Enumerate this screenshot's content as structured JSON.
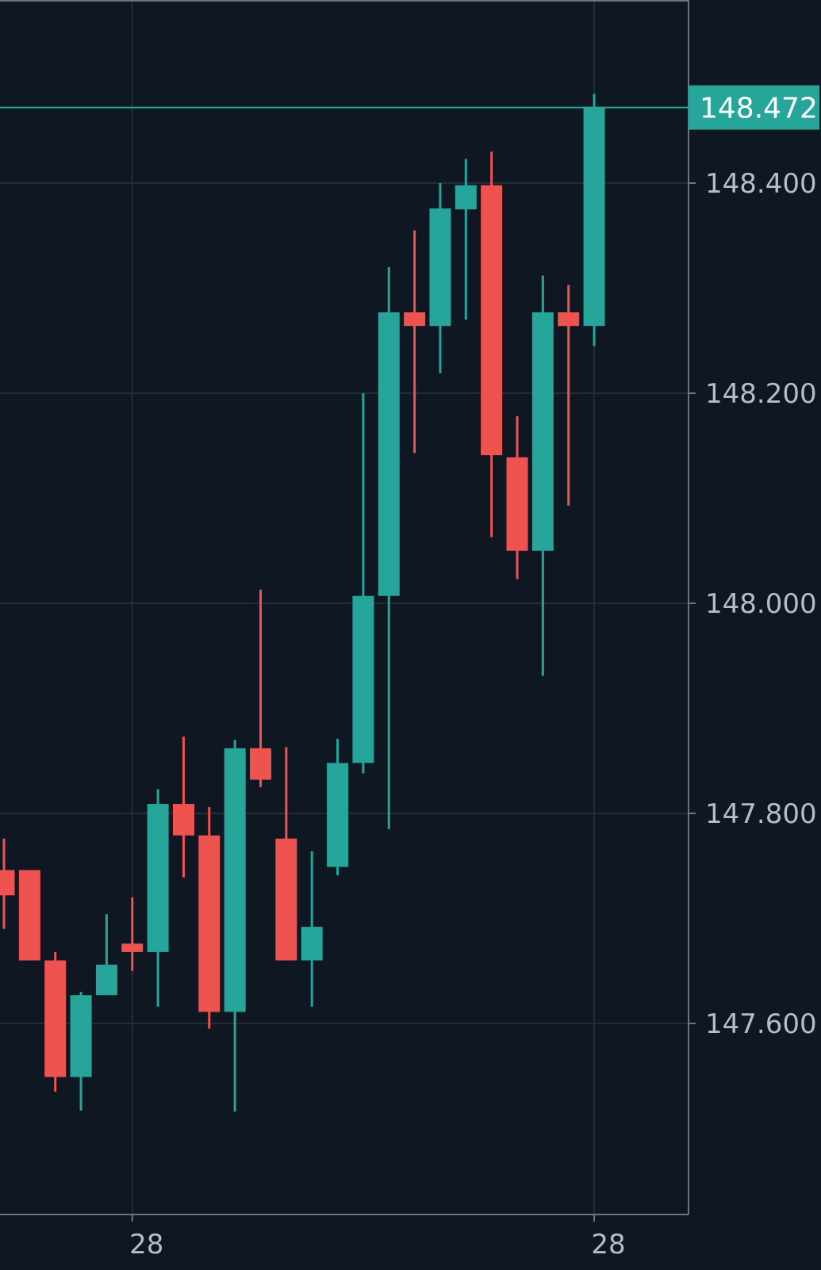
{
  "colors": {
    "background": "#0f1722",
    "grid": "#252c38",
    "axis": "#6e737e",
    "label": "#b8bcc4",
    "up": "#26a69a",
    "down": "#ef5350",
    "price_badge_text": "#ffffff"
  },
  "chart_data": {
    "type": "candlestick",
    "y_ticks": [
      {
        "value": 148.4,
        "label": "148.400"
      },
      {
        "value": 148.2,
        "label": "148.200"
      },
      {
        "value": 148.0,
        "label": "148.000"
      },
      {
        "value": 147.8,
        "label": "147.800"
      },
      {
        "value": 147.6,
        "label": "147.600"
      }
    ],
    "x_ticks": [
      {
        "index": 5,
        "label": "28"
      },
      {
        "index": 23,
        "label": "28"
      }
    ],
    "ylim": [
      147.423,
      148.58
    ],
    "current_price": {
      "value": 148.472,
      "label": "148.472"
    },
    "candles": [
      {
        "o": 147.746,
        "h": 147.776,
        "l": 147.69,
        "c": 147.722
      },
      {
        "o": 147.746,
        "h": 147.74,
        "l": 147.664,
        "c": 147.66
      },
      {
        "o": 147.66,
        "h": 147.668,
        "l": 147.535,
        "c": 147.549
      },
      {
        "o": 147.549,
        "h": 147.63,
        "l": 147.517,
        "c": 147.627
      },
      {
        "o": 147.627,
        "h": 147.704,
        "l": 147.627,
        "c": 147.656
      },
      {
        "o": 147.676,
        "h": 147.72,
        "l": 147.65,
        "c": 147.668
      },
      {
        "o": 147.668,
        "h": 147.823,
        "l": 147.616,
        "c": 147.809
      },
      {
        "o": 147.809,
        "h": 147.873,
        "l": 147.739,
        "c": 147.779
      },
      {
        "o": 147.779,
        "h": 147.806,
        "l": 147.595,
        "c": 147.611
      },
      {
        "o": 147.611,
        "h": 147.87,
        "l": 147.516,
        "c": 147.862
      },
      {
        "o": 147.862,
        "h": 148.013,
        "l": 147.825,
        "c": 147.832
      },
      {
        "o": 147.776,
        "h": 147.863,
        "l": 147.663,
        "c": 147.66
      },
      {
        "o": 147.66,
        "h": 147.764,
        "l": 147.616,
        "c": 147.692
      },
      {
        "o": 147.749,
        "h": 147.871,
        "l": 147.741,
        "c": 147.848
      },
      {
        "o": 147.848,
        "h": 148.2,
        "l": 147.838,
        "c": 148.007
      },
      {
        "o": 148.007,
        "h": 148.32,
        "l": 147.785,
        "c": 148.277
      },
      {
        "o": 148.277,
        "h": 148.355,
        "l": 148.143,
        "c": 148.264
      },
      {
        "o": 148.264,
        "h": 148.4,
        "l": 148.219,
        "c": 148.376
      },
      {
        "o": 148.375,
        "h": 148.423,
        "l": 148.27,
        "c": 148.398
      },
      {
        "o": 148.398,
        "h": 148.43,
        "l": 148.063,
        "c": 148.141
      },
      {
        "o": 148.139,
        "h": 148.178,
        "l": 148.023,
        "c": 148.05
      },
      {
        "o": 148.05,
        "h": 148.312,
        "l": 147.931,
        "c": 148.277
      },
      {
        "o": 148.277,
        "h": 148.303,
        "l": 148.093,
        "c": 148.264
      },
      {
        "o": 148.264,
        "h": 148.485,
        "l": 148.245,
        "c": 148.472
      }
    ]
  }
}
